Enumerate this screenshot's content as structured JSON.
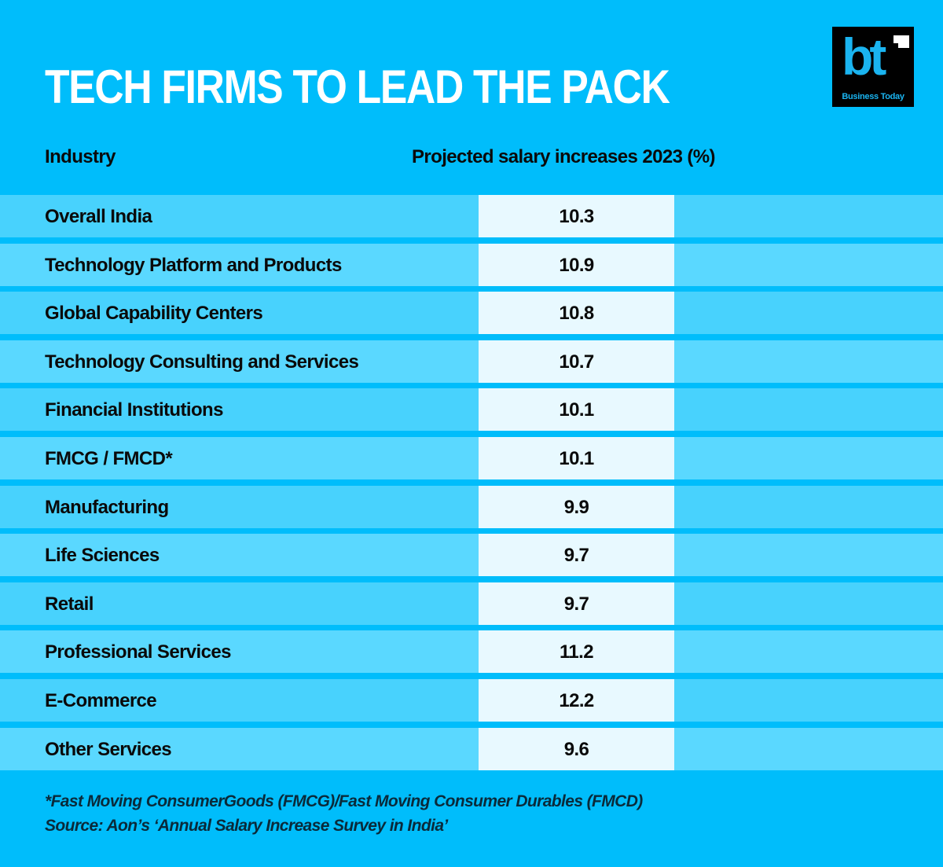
{
  "title": "TECH FIRMS TO LEAD THE PACK",
  "logo": {
    "mark": "bt",
    "text": "Business Today"
  },
  "colors": {
    "background": "#00bdfb",
    "row_odd": "#48d2fd",
    "row_even": "#5ad8ff",
    "value_cell": "#e8f9ff",
    "title": "#ffffff"
  },
  "chart_data": {
    "type": "table",
    "columns": [
      "Industry",
      "Projected salary increases 2023 (%)"
    ],
    "rows": [
      {
        "industry": "Overall India",
        "value": "10.3"
      },
      {
        "industry": "Technology Platform and Products",
        "value": "10.9"
      },
      {
        "industry": "Global Capability Centers",
        "value": "10.8"
      },
      {
        "industry": "Technology Consulting and Services",
        "value": "10.7"
      },
      {
        "industry": "Financial Institutions",
        "value": "10.1"
      },
      {
        "industry": "FMCG / FMCD*",
        "value": "10.1"
      },
      {
        "industry": "Manufacturing",
        "value": "9.9"
      },
      {
        "industry": "Life Sciences",
        "value": "9.7"
      },
      {
        "industry": "Retail",
        "value": "9.7"
      },
      {
        "industry": "Professional Services",
        "value": "11.2"
      },
      {
        "industry": "E-Commerce",
        "value": "12.2"
      },
      {
        "industry": "Other Services",
        "value": "9.6"
      }
    ]
  },
  "footnotes": [
    "*Fast Moving ConsumerGoods (FMCG)/Fast Moving Consumer Durables (FMCD)",
    "Source: Aon’s ‘Annual Salary Increase Survey in India’"
  ]
}
